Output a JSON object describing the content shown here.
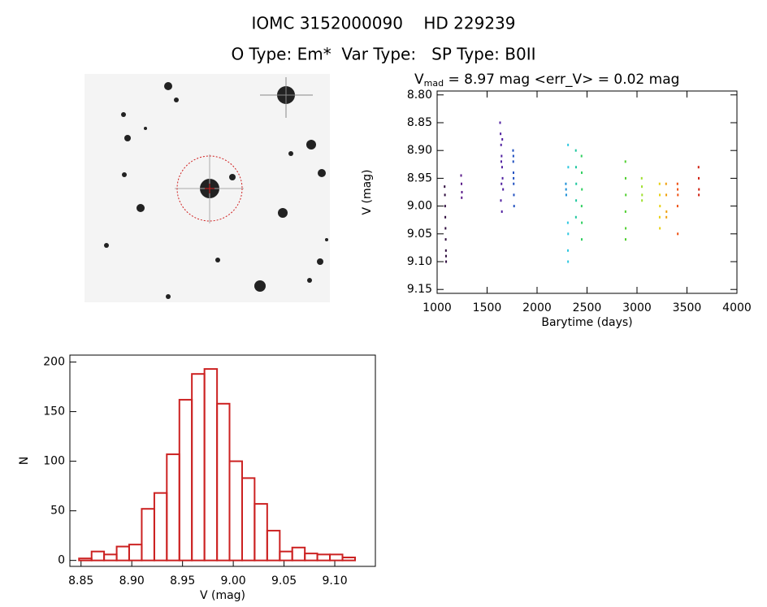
{
  "header": {
    "title": "IOMC 3152000090    HD 229239",
    "subtitle": "O Type: Em*  Var Type:   SP Type: B0II"
  },
  "chart_data": [
    {
      "type": "scatter",
      "title": "V",
      "title_subscript": "mad",
      "title_rest": " = 8.97 mag <err_V> = 0.02 mag",
      "x_label": "Barytime (days)",
      "y_label": "V (mag)",
      "xlim": [
        1000,
        4000
      ],
      "xticks": [
        1000,
        1500,
        2000,
        2500,
        3000,
        3500,
        4000
      ],
      "ylim": [
        9.157,
        8.793
      ],
      "yticks": [
        {
          "value": 8.8,
          "label": "8.80"
        },
        {
          "value": 8.85,
          "label": "8.85"
        },
        {
          "value": 8.9,
          "label": "8.90"
        },
        {
          "value": 8.95,
          "label": "8.95"
        },
        {
          "value": 9.0,
          "label": "9.00"
        },
        {
          "value": 9.05,
          "label": "9.05"
        },
        {
          "value": 9.1,
          "label": "9.10"
        },
        {
          "value": 9.15,
          "label": "9.15"
        }
      ],
      "series": [
        {
          "color": "#2d0a3c",
          "x": [
            1075,
            1078,
            1080,
            1082,
            1084,
            1086,
            1088,
            1090,
            1089
          ],
          "y": [
            8.965,
            8.98,
            9.0,
            9.02,
            9.04,
            9.06,
            9.08,
            9.1,
            9.09
          ]
        },
        {
          "color": "#5a1a8a",
          "x": [
            1240,
            1244,
            1248,
            1246
          ],
          "y": [
            8.945,
            8.96,
            8.975,
            8.985
          ]
        },
        {
          "color": "#5020a0",
          "x": [
            1630,
            1635,
            1640,
            1645,
            1650,
            1655,
            1660,
            1638,
            1648,
            1652,
            1642,
            1644
          ],
          "y": [
            8.85,
            8.87,
            8.89,
            8.91,
            8.93,
            8.95,
            8.97,
            8.99,
            9.01,
            8.88,
            8.92,
            8.96
          ]
        },
        {
          "color": "#2050c0",
          "x": [
            1760,
            1762,
            1764,
            1766,
            1768,
            1770,
            1763,
            1765
          ],
          "y": [
            8.9,
            8.92,
            8.94,
            8.96,
            8.98,
            9.0,
            8.91,
            8.95
          ]
        },
        {
          "color": "#1e90d8",
          "x": [
            2288,
            2290,
            2292
          ],
          "y": [
            8.96,
            8.97,
            8.98
          ]
        },
        {
          "color": "#30c8e0",
          "x": [
            2310,
            2312,
            2308,
            2311,
            2309,
            2310
          ],
          "y": [
            8.89,
            8.93,
            9.03,
            9.05,
            9.08,
            9.1
          ]
        },
        {
          "color": "#20c8a0",
          "x": [
            2388,
            2390,
            2392,
            2391,
            2389
          ],
          "y": [
            8.9,
            8.93,
            8.96,
            8.99,
            9.02
          ]
        },
        {
          "color": "#30d060",
          "x": [
            2445,
            2447,
            2449,
            2446,
            2448,
            2447
          ],
          "y": [
            8.91,
            8.94,
            8.97,
            9.0,
            9.03,
            9.06
          ]
        },
        {
          "color": "#50d030",
          "x": [
            2884,
            2886,
            2888,
            2885,
            2887,
            2886
          ],
          "y": [
            8.92,
            8.95,
            8.98,
            9.01,
            9.04,
            9.06
          ]
        },
        {
          "color": "#a0e030",
          "x": [
            3047,
            3049,
            3051,
            3050
          ],
          "y": [
            8.95,
            8.965,
            8.98,
            8.99
          ]
        },
        {
          "color": "#e8d010",
          "x": [
            3226,
            3228,
            3230,
            3227,
            3229
          ],
          "y": [
            8.96,
            8.98,
            9.0,
            9.02,
            9.04
          ]
        },
        {
          "color": "#f0a010",
          "x": [
            3291,
            3293,
            3295,
            3294
          ],
          "y": [
            8.96,
            8.98,
            9.01,
            9.02
          ]
        },
        {
          "color": "#f05010",
          "x": [
            3405,
            3407,
            3409,
            3406,
            3408
          ],
          "y": [
            8.96,
            8.97,
            8.98,
            9.0,
            9.05
          ]
        },
        {
          "color": "#d02010",
          "x": [
            3616,
            3618,
            3620,
            3619
          ],
          "y": [
            8.93,
            8.95,
            8.97,
            8.98
          ]
        }
      ]
    },
    {
      "type": "histogram",
      "x_label": "V (mag)",
      "y_label": "N",
      "color": "#cc2222",
      "xlim": [
        8.839,
        9.14
      ],
      "xticks": [
        {
          "value": 8.85,
          "label": "8.85"
        },
        {
          "value": 8.9,
          "label": "8.90"
        },
        {
          "value": 8.95,
          "label": "8.95"
        },
        {
          "value": 9.0,
          "label": "9.00"
        },
        {
          "value": 9.05,
          "label": "9.05"
        },
        {
          "value": 9.1,
          "label": "9.10"
        }
      ],
      "ylim": [
        -6,
        207
      ],
      "yticks": [
        0,
        50,
        100,
        150,
        200
      ],
      "bins": [
        8.848,
        8.8604,
        8.8727,
        8.8851,
        8.8974,
        8.9098,
        8.9222,
        8.9345,
        8.9469,
        8.9592,
        8.9716,
        8.984,
        8.9963,
        9.0087,
        9.021,
        9.0334,
        9.0458,
        9.0581,
        9.0705,
        9.0828,
        9.0952,
        9.1076,
        9.12
      ],
      "counts": [
        2,
        9,
        6,
        14,
        16,
        52,
        68,
        107,
        162,
        188,
        193,
        158,
        100,
        83,
        57,
        30,
        9,
        13,
        7,
        6,
        6,
        3
      ]
    }
  ]
}
